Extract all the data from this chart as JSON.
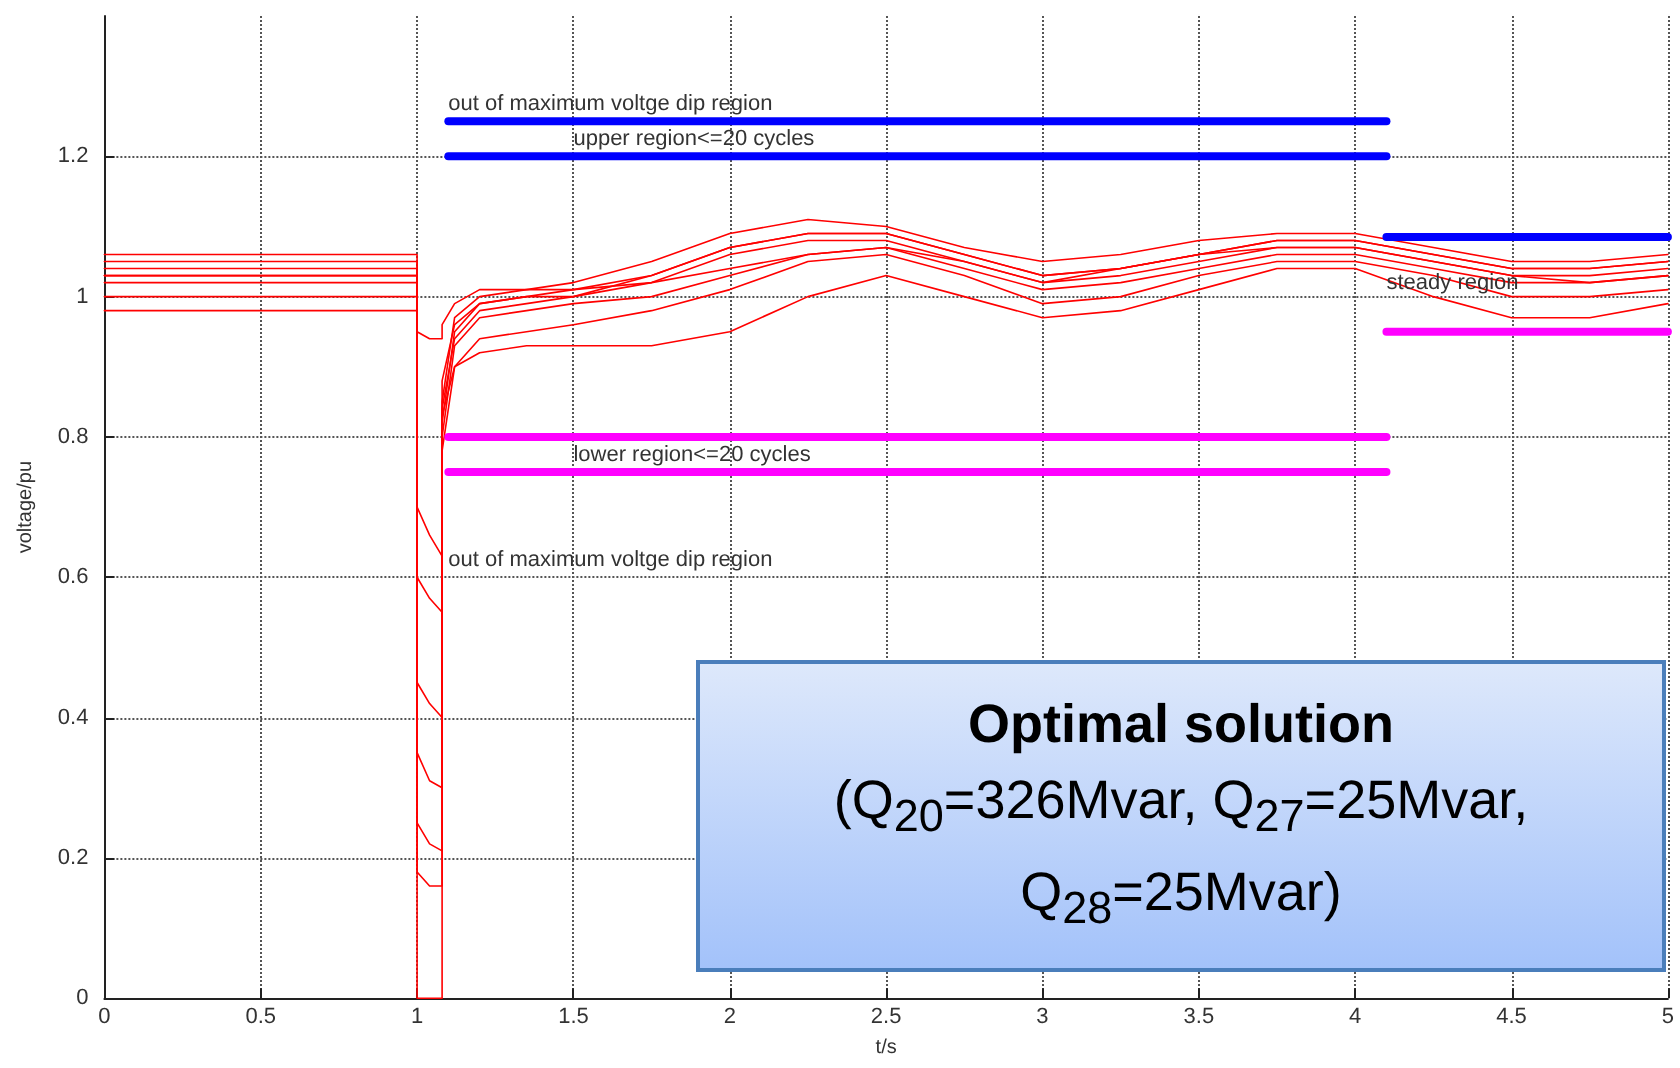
{
  "chart_data": {
    "type": "line",
    "xlabel": "t/s",
    "ylabel": "voltage/pu",
    "xlim": [
      0,
      5
    ],
    "xticks": [
      0,
      0.5,
      1,
      1.5,
      2,
      2.5,
      3,
      3.5,
      4,
      4.5,
      5
    ],
    "ylim": [
      0,
      1.4
    ],
    "yticks": [
      0,
      0.2,
      0.4,
      0.6,
      0.8,
      1,
      1.2
    ],
    "grid": true,
    "marker": "none",
    "line_style": "solid",
    "x": [
      0,
      1,
      1,
      1.04,
      1.08,
      1.08,
      1.12,
      1.2,
      1.35,
      1.5,
      1.75,
      2,
      2.25,
      2.5,
      2.75,
      3,
      3.25,
      3.5,
      3.75,
      4,
      4.25,
      4.5,
      4.75,
      5
    ],
    "series": [
      {
        "color": "#ff0000",
        "values": [
          1.06,
          1.06,
          0.6,
          0.57,
          0.55,
          0.85,
          0.97,
          1.0,
          1.01,
          1.02,
          1.05,
          1.09,
          1.11,
          1.1,
          1.07,
          1.05,
          1.06,
          1.08,
          1.09,
          1.09,
          1.07,
          1.05,
          1.05,
          1.06
        ]
      },
      {
        "color": "#ff0000",
        "values": [
          1.04,
          1.04,
          0.45,
          0.42,
          0.4,
          0.82,
          0.95,
          0.99,
          1.0,
          1.0,
          1.02,
          1.06,
          1.08,
          1.08,
          1.05,
          1.02,
          1.03,
          1.05,
          1.07,
          1.07,
          1.05,
          1.03,
          1.03,
          1.04
        ]
      },
      {
        "color": "#ff0000",
        "values": [
          1.03,
          1.03,
          0.25,
          0.22,
          0.21,
          0.8,
          0.93,
          0.97,
          0.98,
          0.99,
          1.0,
          1.03,
          1.06,
          1.07,
          1.04,
          1.01,
          1.02,
          1.04,
          1.06,
          1.06,
          1.04,
          1.02,
          1.02,
          1.03
        ]
      },
      {
        "color": "#ff0000",
        "values": [
          1.02,
          1.02,
          0.18,
          0.16,
          0.16,
          0.78,
          0.9,
          0.94,
          0.95,
          0.96,
          0.98,
          1.01,
          1.05,
          1.06,
          1.03,
          0.99,
          1.0,
          1.03,
          1.05,
          1.05,
          1.03,
          1.0,
          1.0,
          1.01
        ]
      },
      {
        "color": "#ff0000",
        "values": [
          1.0,
          1.0,
          0.35,
          0.31,
          0.3,
          0.83,
          0.9,
          0.92,
          0.93,
          0.93,
          0.93,
          0.95,
          1.0,
          1.03,
          1.0,
          0.97,
          0.98,
          1.01,
          1.04,
          1.04,
          1.0,
          0.97,
          0.97,
          0.99
        ]
      },
      {
        "color": "#ff0000",
        "values": [
          0.98,
          0.98,
          0.95,
          0.94,
          0.94,
          0.96,
          0.99,
          1.01,
          1.01,
          1.01,
          1.02,
          1.04,
          1.06,
          1.07,
          1.05,
          1.02,
          1.04,
          1.06,
          1.07,
          1.07,
          1.05,
          1.03,
          1.02,
          1.03
        ]
      },
      {
        "color": "#ff0000",
        "values": [
          1.05,
          1.05,
          0.0,
          0.0,
          0.0,
          0.84,
          0.94,
          0.98,
          0.99,
          1.0,
          1.03,
          1.07,
          1.09,
          1.09,
          1.06,
          1.03,
          1.04,
          1.06,
          1.08,
          1.08,
          1.06,
          1.04,
          1.04,
          1.05
        ]
      },
      {
        "color": "#ff0000",
        "values": [
          1.03,
          1.03,
          0.7,
          0.66,
          0.63,
          0.88,
          0.96,
          0.99,
          1.0,
          1.01,
          1.03,
          1.07,
          1.09,
          1.09,
          1.06,
          1.03,
          1.04,
          1.06,
          1.08,
          1.08,
          1.06,
          1.04,
          1.04,
          1.05
        ]
      },
      {
        "color": "#0000ff",
        "x": [
          1.1,
          4.1
        ],
        "values": [
          1.25,
          1.25
        ]
      },
      {
        "color": "#0000ff",
        "x": [
          1.1,
          4.1
        ],
        "values": [
          1.2,
          1.2
        ]
      },
      {
        "color": "#0000ff",
        "x": [
          4.1,
          5
        ],
        "values": [
          1.085,
          1.085
        ]
      },
      {
        "color": "#ff00ff",
        "x": [
          1.1,
          4.1
        ],
        "values": [
          0.8,
          0.8
        ]
      },
      {
        "color": "#ff00ff",
        "x": [
          1.1,
          4.1
        ],
        "values": [
          0.75,
          0.75
        ]
      },
      {
        "color": "#ff00ff",
        "x": [
          4.1,
          5
        ],
        "values": [
          0.95,
          0.95
        ]
      }
    ],
    "annotations": [
      {
        "text": "out of maximum voltge dip region",
        "x": 1.1,
        "y": 1.25
      },
      {
        "text": "upper region<=20 cycles",
        "x": 1.5,
        "y": 1.2
      },
      {
        "text": "lower region<=20 cycles",
        "x": 1.5,
        "y": 0.75
      },
      {
        "text": "out of maximum voltge dip region",
        "x": 1.1,
        "y": 0.6
      },
      {
        "text": "steady region",
        "x": 4.1,
        "y": 0.95
      },
      "Optimal solution\n(Q$_{20}$=326Mvar, Q$_{27}$=25Mvar,\nQ$_{28}$=25Mvar)"
    ]
  }
}
